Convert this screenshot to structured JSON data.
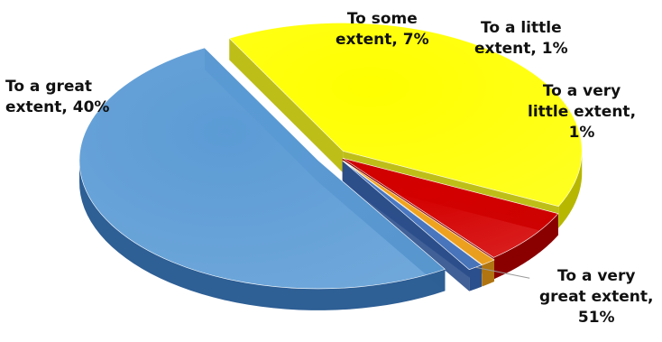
{
  "chart_data": {
    "type": "pie",
    "title": "",
    "slices": [
      {
        "label": "To a very great extent, 51%",
        "label_lines": [
          "To a very",
          "great extent,",
          "51%"
        ],
        "value": 51,
        "color": "#5b9bd5",
        "dark": "#2e5f95"
      },
      {
        "label": "To a great extent, 40%",
        "label_lines": [
          "To a great",
          "extent, 40%"
        ],
        "value": 40,
        "color": "#ffff00",
        "dark": "#b7b700"
      },
      {
        "label": "To some extent, 7%",
        "label_lines": [
          "To some",
          "extent, 7%"
        ],
        "value": 7,
        "color": "#d40000",
        "dark": "#8a0000"
      },
      {
        "label": "To a little extent, 1%",
        "label_lines": [
          "To a little",
          "extent, 1%"
        ],
        "value": 1,
        "color": "#f2a51f",
        "dark": "#b07512"
      },
      {
        "label": "To a very little extent, 1%",
        "label_lines": [
          "To a very",
          "little extent,",
          "1%"
        ],
        "value": 1,
        "color": "#4a78c2",
        "dark": "#2b4f8c"
      }
    ],
    "style": "3d-exploded"
  }
}
